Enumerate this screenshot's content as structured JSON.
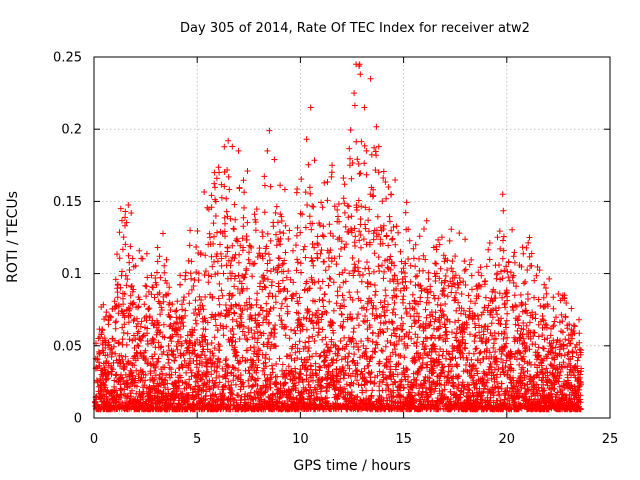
{
  "chart_data": {
    "type": "scatter",
    "title": "Day 305 of 2014, Rate Of TEC Index for receiver atw2",
    "xlabel": "GPS time / hours",
    "ylabel": "ROTI / TECUs",
    "xlim": [
      0,
      25
    ],
    "ylim": [
      0,
      0.25
    ],
    "xticks": [
      0,
      5,
      10,
      15,
      20,
      25
    ],
    "yticks": [
      0,
      0.05,
      0.1,
      0.15,
      0.2,
      0.25
    ],
    "ytick_labels": [
      "0",
      "0.05",
      "0.1",
      "0.15",
      "0.2",
      "0.25"
    ],
    "grid": true,
    "marker": "plus",
    "color": "#ff0000",
    "x_data_range": [
      0.05,
      23.6
    ],
    "notable_points": [
      {
        "x": 12.7,
        "y": 0.245
      },
      {
        "x": 12.9,
        "y": 0.238
      },
      {
        "x": 13.4,
        "y": 0.235
      },
      {
        "x": 13.1,
        "y": 0.215
      },
      {
        "x": 12.6,
        "y": 0.225
      },
      {
        "x": 10.5,
        "y": 0.215
      },
      {
        "x": 10.3,
        "y": 0.193
      },
      {
        "x": 8.5,
        "y": 0.199
      },
      {
        "x": 8.4,
        "y": 0.185
      },
      {
        "x": 6.5,
        "y": 0.192
      },
      {
        "x": 6.7,
        "y": 0.188
      },
      {
        "x": 7.0,
        "y": 0.185
      },
      {
        "x": 19.8,
        "y": 0.155
      },
      {
        "x": 1.3,
        "y": 0.145
      },
      {
        "x": 1.8,
        "y": 0.142
      },
      {
        "x": 5.7,
        "y": 0.146
      },
      {
        "x": 13.2,
        "y": 0.185
      },
      {
        "x": 12.4,
        "y": 0.175
      },
      {
        "x": 11.5,
        "y": 0.167
      },
      {
        "x": 14.4,
        "y": 0.155
      },
      {
        "x": 21.1,
        "y": 0.125
      },
      {
        "x": 22.8,
        "y": 0.085
      },
      {
        "x": 23.5,
        "y": 0.068
      }
    ],
    "envelope": [
      {
        "x": 0.0,
        "y": 0.05
      },
      {
        "x": 1.0,
        "y": 0.09
      },
      {
        "x": 1.5,
        "y": 0.14
      },
      {
        "x": 2.0,
        "y": 0.1
      },
      {
        "x": 2.5,
        "y": 0.09
      },
      {
        "x": 3.0,
        "y": 0.11
      },
      {
        "x": 4.0,
        "y": 0.085
      },
      {
        "x": 5.0,
        "y": 0.11
      },
      {
        "x": 5.5,
        "y": 0.13
      },
      {
        "x": 6.5,
        "y": 0.16
      },
      {
        "x": 7.0,
        "y": 0.14
      },
      {
        "x": 8.0,
        "y": 0.13
      },
      {
        "x": 8.5,
        "y": 0.15
      },
      {
        "x": 9.5,
        "y": 0.12
      },
      {
        "x": 10.3,
        "y": 0.16
      },
      {
        "x": 11.0,
        "y": 0.14
      },
      {
        "x": 11.5,
        "y": 0.15
      },
      {
        "x": 12.0,
        "y": 0.13
      },
      {
        "x": 12.8,
        "y": 0.2
      },
      {
        "x": 13.3,
        "y": 0.19
      },
      {
        "x": 14.0,
        "y": 0.15
      },
      {
        "x": 14.5,
        "y": 0.14
      },
      {
        "x": 15.0,
        "y": 0.13
      },
      {
        "x": 16.0,
        "y": 0.12
      },
      {
        "x": 17.0,
        "y": 0.11
      },
      {
        "x": 18.0,
        "y": 0.1
      },
      {
        "x": 19.0,
        "y": 0.1
      },
      {
        "x": 19.8,
        "y": 0.13
      },
      {
        "x": 20.5,
        "y": 0.1
      },
      {
        "x": 21.0,
        "y": 0.11
      },
      {
        "x": 22.0,
        "y": 0.075
      },
      {
        "x": 23.0,
        "y": 0.07
      },
      {
        "x": 23.6,
        "y": 0.06
      }
    ]
  }
}
